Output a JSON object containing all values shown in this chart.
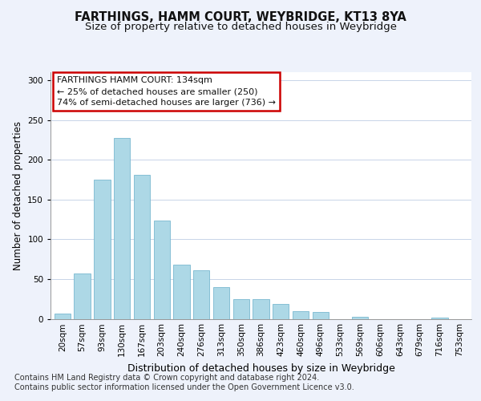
{
  "title": "FARTHINGS, HAMM COURT, WEYBRIDGE, KT13 8YA",
  "subtitle": "Size of property relative to detached houses in Weybridge",
  "xlabel": "Distribution of detached houses by size in Weybridge",
  "ylabel": "Number of detached properties",
  "bar_labels": [
    "20sqm",
    "57sqm",
    "93sqm",
    "130sqm",
    "167sqm",
    "203sqm",
    "240sqm",
    "276sqm",
    "313sqm",
    "350sqm",
    "386sqm",
    "423sqm",
    "460sqm",
    "496sqm",
    "533sqm",
    "569sqm",
    "606sqm",
    "643sqm",
    "679sqm",
    "716sqm",
    "753sqm"
  ],
  "bar_values": [
    7,
    57,
    175,
    227,
    181,
    124,
    68,
    61,
    40,
    25,
    25,
    19,
    10,
    9,
    0,
    3,
    0,
    0,
    0,
    2,
    0
  ],
  "bar_color": "#add8e6",
  "bar_edge_color": "#7ab8d0",
  "ylim": [
    0,
    310
  ],
  "yticks": [
    0,
    50,
    100,
    150,
    200,
    250,
    300
  ],
  "annotation_line1": "FARTHINGS HAMM COURT: 134sqm",
  "annotation_line2": "← 25% of detached houses are smaller (250)",
  "annotation_line3": "74% of semi-detached houses are larger (736) →",
  "annotation_box_facecolor": "#ffffff",
  "annotation_box_edgecolor": "#cc0000",
  "footnote1": "Contains HM Land Registry data © Crown copyright and database right 2024.",
  "footnote2": "Contains public sector information licensed under the Open Government Licence v3.0.",
  "bg_color": "#eef2fb",
  "plot_bg_color": "#ffffff",
  "title_fontsize": 10.5,
  "subtitle_fontsize": 9.5,
  "xlabel_fontsize": 9,
  "ylabel_fontsize": 8.5,
  "tick_fontsize": 7.5,
  "annotation_fontsize": 8,
  "footnote_fontsize": 7
}
